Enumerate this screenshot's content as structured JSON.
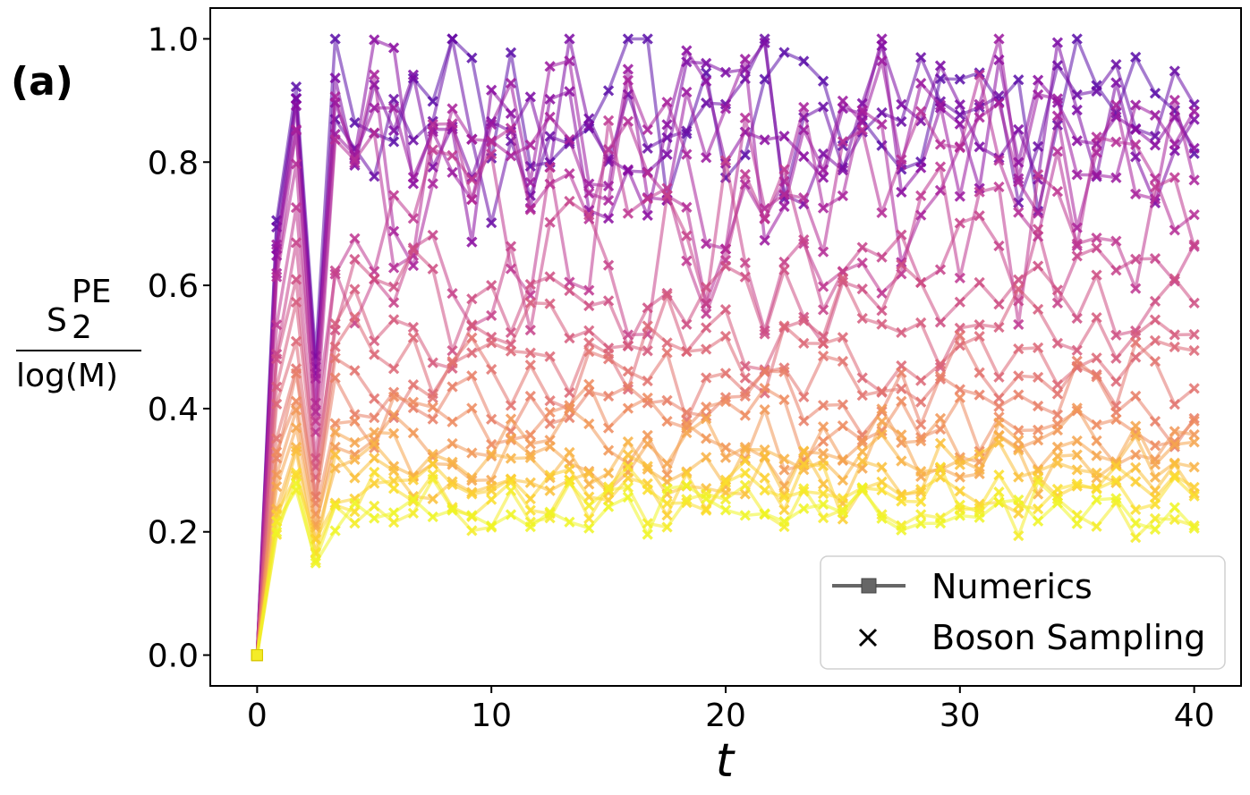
{
  "chart_data": {
    "type": "line",
    "panel_label": "(a)",
    "xlabel": "t",
    "ylabel_numerator": "S",
    "ylabel_sub": "2",
    "ylabel_sup": "PE",
    "ylabel_denominator": "log(M)",
    "xlim": [
      -2,
      42
    ],
    "ylim": [
      -0.05,
      1.05
    ],
    "xticks": [
      0,
      10,
      20,
      30,
      40
    ],
    "xtick_labels": [
      "0",
      "10",
      "20",
      "30",
      "40"
    ],
    "yticks": [
      0.0,
      0.2,
      0.4,
      0.6,
      0.8,
      1.0
    ],
    "ytick_labels": [
      "0.0",
      "0.2",
      "0.4",
      "0.6",
      "0.8",
      "1.0"
    ],
    "legend": {
      "placement": "lower-right",
      "entries": [
        {
          "label": "Numerics",
          "marker": "square-line"
        },
        {
          "label": "Boson Sampling",
          "marker": "x"
        }
      ]
    },
    "grid": false,
    "sampling": {
      "t_start": 0,
      "t_end": 40,
      "num_points": 49,
      "marker_every": 1
    },
    "series": [
      {
        "name": "s1",
        "color": "#5B0EA8",
        "plateau": 0.88,
        "trough": 0.48,
        "rise": 0.93
      },
      {
        "name": "s2",
        "color": "#6A0DA5",
        "plateau": 0.87,
        "trough": 0.46,
        "rise": 0.92
      },
      {
        "name": "s3",
        "color": "#7B0AA3",
        "plateau": 0.86,
        "trough": 0.45,
        "rise": 0.9
      },
      {
        "name": "s4",
        "color": "#8A0CA0",
        "plateau": 0.85,
        "trough": 0.43,
        "rise": 0.89
      },
      {
        "name": "s5",
        "color": "#9A169E",
        "plateau": 0.83,
        "trough": 0.41,
        "rise": 0.87
      },
      {
        "name": "s6",
        "color": "#A8209A",
        "plateau": 0.8,
        "trough": 0.4,
        "rise": 0.84
      },
      {
        "name": "s7",
        "color": "#B42B95",
        "plateau": 0.76,
        "trough": 0.38,
        "rise": 0.8
      },
      {
        "name": "s8",
        "color": "#BE3690",
        "plateau": 0.71,
        "trough": 0.36,
        "rise": 0.74
      },
      {
        "name": "s9",
        "color": "#C6428A",
        "plateau": 0.64,
        "trough": 0.33,
        "rise": 0.67
      },
      {
        "name": "s10",
        "color": "#CE4E83",
        "plateau": 0.58,
        "trough": 0.31,
        "rise": 0.61
      },
      {
        "name": "s11",
        "color": "#D55A7C",
        "plateau": 0.53,
        "trough": 0.29,
        "rise": 0.56
      },
      {
        "name": "s12",
        "color": "#DC6675",
        "plateau": 0.48,
        "trough": 0.27,
        "rise": 0.52
      },
      {
        "name": "s13",
        "color": "#E2726E",
        "plateau": 0.44,
        "trough": 0.25,
        "rise": 0.48
      },
      {
        "name": "s14",
        "color": "#E87E66",
        "plateau": 0.41,
        "trough": 0.23,
        "rise": 0.45
      },
      {
        "name": "s15",
        "color": "#ED8A5E",
        "plateau": 0.38,
        "trough": 0.22,
        "rise": 0.42
      },
      {
        "name": "s16",
        "color": "#F19756",
        "plateau": 0.35,
        "trough": 0.21,
        "rise": 0.39
      },
      {
        "name": "s17",
        "color": "#F5A44D",
        "plateau": 0.33,
        "trough": 0.2,
        "rise": 0.36
      },
      {
        "name": "s18",
        "color": "#F8B244",
        "plateau": 0.31,
        "trough": 0.19,
        "rise": 0.34
      },
      {
        "name": "s19",
        "color": "#FAC03A",
        "plateau": 0.29,
        "trough": 0.18,
        "rise": 0.32
      },
      {
        "name": "s20",
        "color": "#FBCF31",
        "plateau": 0.27,
        "trough": 0.17,
        "rise": 0.3
      },
      {
        "name": "s21",
        "color": "#FADE2A",
        "plateau": 0.26,
        "trough": 0.16,
        "rise": 0.29
      },
      {
        "name": "s22",
        "color": "#F4EC28",
        "plateau": 0.24,
        "trough": 0.15,
        "rise": 0.27
      },
      {
        "name": "s23",
        "color": "#EEF525",
        "plateau": 0.23,
        "trough": 0.14,
        "rise": 0.26
      }
    ]
  }
}
